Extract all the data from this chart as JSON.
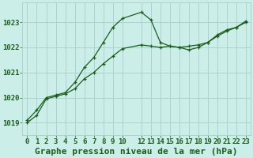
{
  "background_color": "#cceee8",
  "grid_color": "#aad4ce",
  "line_color": "#1a5c1a",
  "title": "Graphe pression niveau de la mer (hPa)",
  "xlim": [
    -0.5,
    23.5
  ],
  "ylim": [
    1018.5,
    1023.8
  ],
  "yticks": [
    1019,
    1020,
    1021,
    1022,
    1023
  ],
  "xticks": [
    0,
    1,
    2,
    3,
    4,
    5,
    6,
    7,
    8,
    9,
    10,
    12,
    13,
    14,
    15,
    16,
    17,
    18,
    19,
    20,
    21,
    22,
    23
  ],
  "series1_x": [
    0,
    1,
    2,
    3,
    4,
    5,
    6,
    7,
    8,
    9,
    10,
    12,
    13,
    14,
    15,
    16,
    17,
    18,
    19,
    20,
    21,
    22,
    23
  ],
  "series1_y": [
    1019.1,
    1019.5,
    1020.0,
    1020.1,
    1020.2,
    1020.6,
    1021.2,
    1021.6,
    1022.2,
    1022.8,
    1023.15,
    1023.4,
    1023.1,
    1022.2,
    1022.05,
    1022.0,
    1021.9,
    1022.0,
    1022.2,
    1022.5,
    1022.7,
    1022.8,
    1023.0
  ],
  "series2_x": [
    0,
    1,
    2,
    3,
    4,
    5,
    6,
    7,
    8,
    9,
    10,
    12,
    13,
    14,
    15,
    16,
    17,
    18,
    19,
    20,
    21,
    22,
    23
  ],
  "series2_y": [
    1019.0,
    1019.3,
    1019.95,
    1020.05,
    1020.15,
    1020.35,
    1020.75,
    1021.0,
    1021.35,
    1021.65,
    1021.95,
    1022.1,
    1022.05,
    1022.0,
    1022.05,
    1022.0,
    1022.05,
    1022.1,
    1022.2,
    1022.45,
    1022.65,
    1022.8,
    1023.05
  ],
  "title_fontsize": 8,
  "tick_fontsize": 6.5
}
